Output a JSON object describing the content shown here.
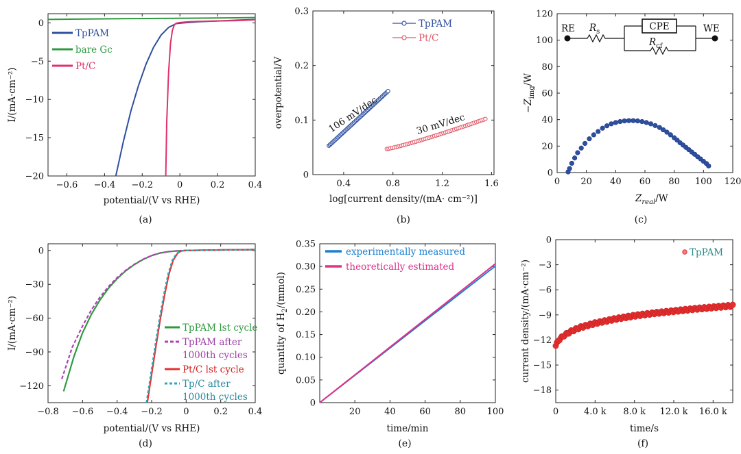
{
  "chart_data": [
    {
      "id": "a",
      "type": "line",
      "caption": "(a)",
      "xlabel": "potential/(V vs RHE)",
      "ylabel": "I/(mA·cm⁻²)",
      "xlim": [
        -0.7,
        0.4
      ],
      "ylim": [
        -20,
        1.2
      ],
      "xticks": [
        -0.6,
        -0.4,
        -0.2,
        0,
        0.2,
        0.4
      ],
      "xtick_labels": [
        "−0.6",
        "−0.4",
        "−0.2",
        "0",
        "0.2",
        "0.4"
      ],
      "yticks": [
        0,
        -5,
        -10,
        -15,
        -20
      ],
      "ytick_labels": [
        "0",
        "−5",
        "−10",
        "−15",
        "−20"
      ],
      "legend_position": "top-left",
      "series": [
        {
          "name": "TpPAM",
          "color": "#2e4fa0",
          "x": [
            -0.34,
            -0.3,
            -0.26,
            -0.22,
            -0.18,
            -0.14,
            -0.1,
            -0.06,
            -0.02,
            0.02,
            0.1,
            0.2,
            0.3,
            0.4
          ],
          "y": [
            -20,
            -15.5,
            -11.5,
            -8.2,
            -5.4,
            -3.2,
            -1.6,
            -0.6,
            -0.1,
            0.0,
            0.15,
            0.25,
            0.35,
            0.45
          ]
        },
        {
          "name": "bare Gc",
          "color": "#2e9a3e",
          "x": [
            -0.7,
            -0.5,
            -0.3,
            -0.1,
            0.1,
            0.3,
            0.4
          ],
          "y": [
            0.45,
            0.5,
            0.55,
            0.58,
            0.62,
            0.66,
            0.7
          ]
        },
        {
          "name": "Pt/C",
          "color": "#e0306a",
          "x": [
            -0.075,
            -0.07,
            -0.06,
            -0.05,
            -0.04,
            -0.03,
            -0.02,
            -0.01,
            0.0,
            0.05,
            0.1,
            0.2,
            0.3,
            0.4
          ],
          "y": [
            -20,
            -13.0,
            -6.5,
            -2.7,
            -1.0,
            -0.3,
            -0.05,
            0.0,
            0.05,
            0.15,
            0.2,
            0.25,
            0.3,
            0.4
          ]
        }
      ]
    },
    {
      "id": "b",
      "type": "scatter",
      "caption": "(b)",
      "xlabel": "log[current density/(mA· cm⁻²)]",
      "ylabel": "overpotential/V",
      "xlim": [
        0.15,
        1.62
      ],
      "ylim": [
        0,
        0.3
      ],
      "xticks": [
        0.4,
        0.8,
        1.2,
        1.6
      ],
      "xtick_labels": [
        "0.4",
        "0.8",
        "1.2",
        "1.6"
      ],
      "yticks": [
        0,
        0.1,
        0.2,
        0.3
      ],
      "ytick_labels": [
        "0",
        "0.1",
        "0.2",
        "0.3"
      ],
      "legend_position": "top-right",
      "series": [
        {
          "name": "TpPAM",
          "color": "#2e4fa0",
          "x_range": [
            0.28,
            0.76
          ],
          "y_range": [
            0.053,
            0.153
          ],
          "count": 60
        },
        {
          "name": "Pt/C",
          "color": "#e05a6a",
          "x_range": [
            0.75,
            1.55
          ],
          "y_range": [
            0.047,
            0.102
          ],
          "count": 55
        }
      ],
      "annotations": [
        {
          "text": "106 mV/dec",
          "x": 0.3,
          "y": 0.077,
          "color": "#2e4fa0",
          "rotate": -34
        },
        {
          "text": "30 mV/dec",
          "x": 1.0,
          "y": 0.074,
          "color": "#e0306a",
          "rotate": -17
        }
      ]
    },
    {
      "id": "c",
      "type": "scatter",
      "caption": "(c)",
      "xlabel_main": "Z",
      "xlabel_sub": "real",
      "xlabel_unit": "/W",
      "ylabel_prefix": "−Z",
      "ylabel_sub": "img",
      "ylabel_unit": "/W",
      "xlim": [
        0,
        120
      ],
      "ylim": [
        0,
        120
      ],
      "xticks": [
        0,
        20,
        40,
        60,
        80,
        100,
        120
      ],
      "xtick_labels": [
        "0",
        "20",
        "40",
        "60",
        "80",
        "100",
        "120"
      ],
      "yticks": [
        0,
        20,
        40,
        60,
        80,
        100,
        120
      ],
      "ytick_labels": [
        "0",
        "20",
        "40",
        "60",
        "80",
        "100",
        "120"
      ],
      "series": [
        {
          "name": "",
          "color": "#2e4fa0",
          "x": [
            7.5,
            8.5,
            10,
            12,
            14,
            16.5,
            19,
            22,
            25,
            28,
            31,
            34,
            37,
            40,
            43,
            46,
            49,
            52,
            55,
            58,
            61,
            64,
            67,
            70,
            72.5,
            75,
            77.5,
            80,
            82,
            84,
            86,
            88,
            90,
            92,
            94,
            96,
            98,
            100,
            102,
            103.5
          ],
          "y": [
            0.5,
            3,
            7,
            11,
            15,
            18.5,
            22,
            25.5,
            28.5,
            31,
            33.5,
            35.3,
            36.8,
            37.8,
            38.5,
            39,
            39.2,
            39.2,
            39,
            38.5,
            37.8,
            36.8,
            35.5,
            34,
            32.3,
            30.5,
            28.5,
            26.3,
            24.5,
            22.5,
            20.8,
            19,
            17.3,
            15.5,
            13.8,
            12,
            10.3,
            8.5,
            6.8,
            5
          ]
        }
      ],
      "circuit": {
        "re": "RE",
        "we": "WE",
        "cpe": "CPE",
        "rs_main": "R",
        "rs_sub": "s",
        "rct_main": "R",
        "rct_sub": "cf"
      }
    },
    {
      "id": "d",
      "type": "line",
      "caption": "(d)",
      "xlabel": "potential/(V vs RHE)",
      "ylabel": "I/(mA·cm⁻²)",
      "xlim": [
        -0.8,
        0.4
      ],
      "ylim": [
        -135,
        6
      ],
      "xticks": [
        -0.8,
        -0.6,
        -0.4,
        -0.2,
        0,
        0.2,
        0.4
      ],
      "xtick_labels": [
        "−0.8",
        "−0.6",
        "−0.4",
        "−0.2",
        "0",
        "0.2",
        "0.4"
      ],
      "yticks": [
        0,
        -30,
        -60,
        -90,
        -120
      ],
      "ytick_labels": [
        "0",
        "−30",
        "−60",
        "−90",
        "−120"
      ],
      "legend_position": "bottom-right",
      "series": [
        {
          "name": "TpPAM lst cycle",
          "color": "#2e9a3e",
          "dash": "",
          "x": [
            -0.71,
            -0.65,
            -0.6,
            -0.55,
            -0.5,
            -0.45,
            -0.4,
            -0.35,
            -0.3,
            -0.25,
            -0.2,
            -0.15,
            -0.1,
            -0.05,
            0.0,
            0.1,
            0.2,
            0.3,
            0.4
          ],
          "y": [
            -125,
            -94,
            -73,
            -57,
            -44,
            -33.5,
            -25,
            -18,
            -12.5,
            -8,
            -4.5,
            -2.2,
            -0.9,
            -0.3,
            0,
            0.3,
            0.5,
            0.7,
            0.9
          ]
        },
        {
          "name": "TpPAM after 1000th cycles",
          "color": "#b040b8",
          "dash": "5,3",
          "x": [
            -0.72,
            -0.66,
            -0.6,
            -0.55,
            -0.5,
            -0.45,
            -0.4,
            -0.35,
            -0.3,
            -0.25,
            -0.2,
            -0.15,
            -0.1,
            -0.05,
            0.0,
            0.1,
            0.2,
            0.3,
            0.4
          ],
          "y": [
            -114,
            -86,
            -67,
            -53,
            -41.5,
            -32,
            -24,
            -17.5,
            -12.2,
            -7.8,
            -4.4,
            -2.1,
            -0.9,
            -0.3,
            0,
            0.3,
            0.5,
            0.7,
            0.9
          ]
        },
        {
          "name": "Pt/C lst cycle",
          "color": "#e53030",
          "dash": "",
          "x": [
            -0.225,
            -0.2,
            -0.175,
            -0.15,
            -0.125,
            -0.1,
            -0.075,
            -0.05,
            -0.03,
            -0.01,
            0.0,
            0.1,
            0.2,
            0.3,
            0.4
          ],
          "y": [
            -135,
            -110,
            -85,
            -61,
            -39.5,
            -21,
            -8.5,
            -2.5,
            -0.5,
            0,
            0.1,
            0.3,
            0.5,
            0.6,
            0.8
          ]
        },
        {
          "name": "Tp/C after 1000th cycles",
          "color": "#2aa8b8",
          "dash": "4,3",
          "x": [
            -0.23,
            -0.205,
            -0.18,
            -0.155,
            -0.13,
            -0.105,
            -0.08,
            -0.055,
            -0.03,
            -0.01,
            0.0,
            0.1,
            0.2,
            0.3,
            0.4
          ],
          "y": [
            -135,
            -110,
            -85,
            -61,
            -39.5,
            -21,
            -8.5,
            -2.5,
            -0.5,
            0,
            0.1,
            0.3,
            0.5,
            0.6,
            0.8
          ]
        }
      ],
      "legend_entries": [
        {
          "lines": [
            "TpPAM lst cycle"
          ],
          "color": "#2e9a3e",
          "text_color": "#2e9a3e",
          "dash": ""
        },
        {
          "lines": [
            "TpPAM after",
            "1000th cycles"
          ],
          "color": "#b040b8",
          "text_color": "#a040a8",
          "dash": "5,3"
        },
        {
          "lines": [
            "Pt/C lst cycle"
          ],
          "color": "#e53030",
          "text_color": "#d82020",
          "dash": ""
        },
        {
          "lines": [
            "Tp/C after",
            "1000th cycles"
          ],
          "color": "#2aa8b8",
          "text_color": "#2a8aa0",
          "dash": "4,3"
        }
      ]
    },
    {
      "id": "e",
      "type": "line",
      "caption": "(e)",
      "xlabel": "time/min",
      "ylabel_prefix": "quantity of H",
      "ylabel_sub": "2",
      "ylabel_unit": "/(mmol)",
      "xlim": [
        0,
        100
      ],
      "ylim": [
        0,
        0.35
      ],
      "xticks": [
        20,
        40,
        60,
        80,
        100
      ],
      "xtick_labels": [
        "20",
        "40",
        "60",
        "80",
        "100"
      ],
      "yticks": [
        0,
        0.05,
        0.1,
        0.15,
        0.2,
        0.25,
        0.3,
        0.35
      ],
      "ytick_labels": [
        "0",
        "0.05",
        "0.10",
        "0.15",
        "0.20",
        "0.25",
        "0.30",
        "0.35"
      ],
      "legend_position": "top-left",
      "series": [
        {
          "name": "experimentally measured",
          "color": "#1a7fd0",
          "x": [
            0,
            100
          ],
          "y": [
            0,
            0.301
          ]
        },
        {
          "name": "theoretically estimated",
          "color": "#e0308a",
          "x": [
            0,
            100
          ],
          "y": [
            0,
            0.306
          ]
        }
      ]
    },
    {
      "id": "f",
      "type": "scatter",
      "caption": "(f)",
      "xlabel": "time/s",
      "ylabel": "current density/(mA·cm⁻²)",
      "xlim": [
        0,
        18000
      ],
      "ylim": [
        -19.5,
        0
      ],
      "xticks": [
        0,
        4000,
        8000,
        12000,
        16000
      ],
      "xtick_labels": [
        "0",
        "4.0 k",
        "8.0 k",
        "12.0 k",
        "16.0 k"
      ],
      "yticks": [
        0,
        -3,
        -6,
        -9,
        -12,
        -15,
        -18
      ],
      "ytick_labels": [
        "0",
        "−3",
        "−6",
        "−9",
        "−12",
        "−15",
        "−18"
      ],
      "legend_position": "top-right",
      "series": [
        {
          "name": "TpPAM",
          "color": "#e53030",
          "x": [
            0,
            300,
            800,
            1500,
            2500,
            4000,
            6000,
            8000,
            10000,
            12000,
            14000,
            16000,
            18000
          ],
          "y": [
            -12.7,
            -12.0,
            -11.5,
            -11.0,
            -10.5,
            -10.0,
            -9.5,
            -9.1,
            -8.8,
            -8.55,
            -8.3,
            -8.1,
            -7.9
          ]
        }
      ]
    }
  ]
}
